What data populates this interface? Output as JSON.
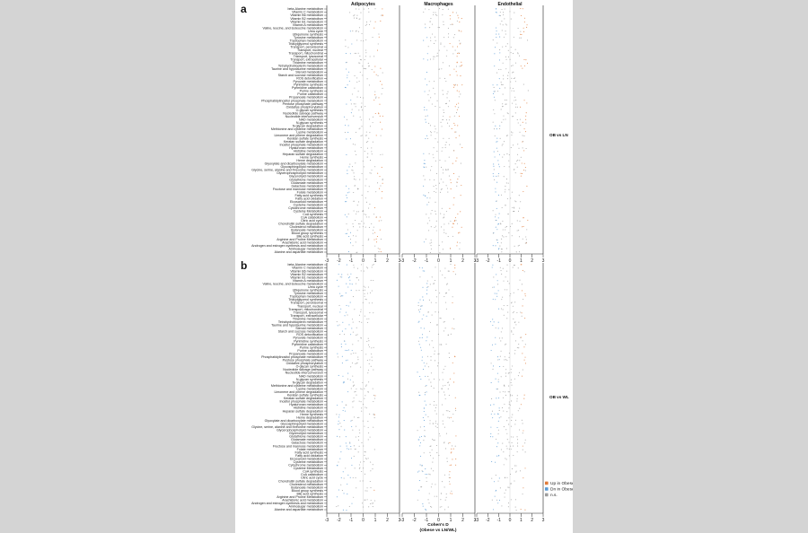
{
  "chart_data": {
    "type": "scatter",
    "panels": [
      {
        "letter": "a",
        "comparison": "OB vs LN"
      },
      {
        "letter": "b",
        "comparison": "OB vs WL"
      }
    ],
    "columns": [
      "Adipocytes",
      "Macrophages",
      "Endothelial"
    ],
    "pathways": [
      "beta-Alanine metabolism",
      "Vitamin C metabolism",
      "Vitamin B6 metabolism",
      "Vitamin B2 metabolism",
      "Vitamin B1 metabolism",
      "Vitamin A metabolism",
      "Valine, leucine, and isoleucine metabolism",
      "Urea cycle",
      "Ubiquinone synthesis",
      "Tyrosine metabolism",
      "Tryptophan metabolism",
      "Triacylglycerol synthesis",
      "Transport, peroxisomal",
      "Transport, nuclear",
      "Transport, mitochondrial",
      "Transport, lysosomal",
      "Transport, extracellular",
      "Thiamine metabolism",
      "Tetrahydrobiopterin metabolism",
      "Taurine and hypotaurine metabolism",
      "Steroid metabolism",
      "Starch and sucrose metabolism",
      "ROS detoxification",
      "Pyruvate metabolism",
      "Pyrimidine synthesis",
      "Pyrimidine catabolism",
      "Purine synthesis",
      "Purine catabolism",
      "Propanoate metabolism",
      "Phosphatidylinositol phosphate metabolism",
      "Pentose phosphate pathway",
      "Oxidative phosphorylation",
      "O-glycan synthesis",
      "Nucleotide salvage pathway",
      "Nucleotide interconversion",
      "NAD metabolism",
      "N-glycan synthesis",
      "N-glycan degradation",
      "Methionine and cysteine metabolism",
      "Lysine metabolism",
      "Limonene and pinene degradation",
      "Keratan sulfate synthesis",
      "Keratan sulfate degradation",
      "Inositol phosphate metabolism",
      "Hyaluronan metabolism",
      "Histidine metabolism",
      "Heparan sulfate degradation",
      "Heme synthesis",
      "Heme degradation",
      "Glyoxylate and dicarboxylate metabolism",
      "Glycosphingolipid metabolism",
      "Glycine, serine, alanine and threonine metabolism",
      "Glycerophospholipid metabolism",
      "Glycerolipid metabolism",
      "Glutathione metabolism",
      "Glutamate metabolism",
      "Galactose metabolism",
      "Fructose and mannose metabolism",
      "Folate metabolism",
      "Fatty acid synthesis",
      "Fatty acid oxidation",
      "Eicosanoid metabolism",
      "Cysteine metabolism",
      "Cytochrome metabolism",
      "Cysteine Metabolism",
      "CoA synthesis",
      "CoA catabolism",
      "Citric acid cycle",
      "Chondroitin sulfate degradation",
      "Cholesterol metabolism",
      "Butanoate metabolism",
      "Blood group synthesis",
      "Bile acid synthesis",
      "Arginine and Proline Metabolism",
      "Arachidonic acid metabolism",
      "Androgen and estrogen synthesis and metabolism",
      "Aminosugar metabolism",
      "Alanine and aspartate metabolism"
    ],
    "x_ticks": [
      -3,
      -2,
      -1,
      0,
      1,
      2,
      3
    ],
    "xlim": [
      -3,
      3
    ],
    "xlabel": "Cohen's D",
    "xlabel_sub": "(Obese vs LN/WL)",
    "legend": [
      {
        "label": "Up in Obese",
        "color": "#e07b39"
      },
      {
        "label": "Dn in Obese",
        "color": "#5b9bd5"
      },
      {
        "label": "n.s.",
        "color": "#9e9e9e"
      }
    ],
    "legend_position": "bottom-right",
    "grid": false
  }
}
